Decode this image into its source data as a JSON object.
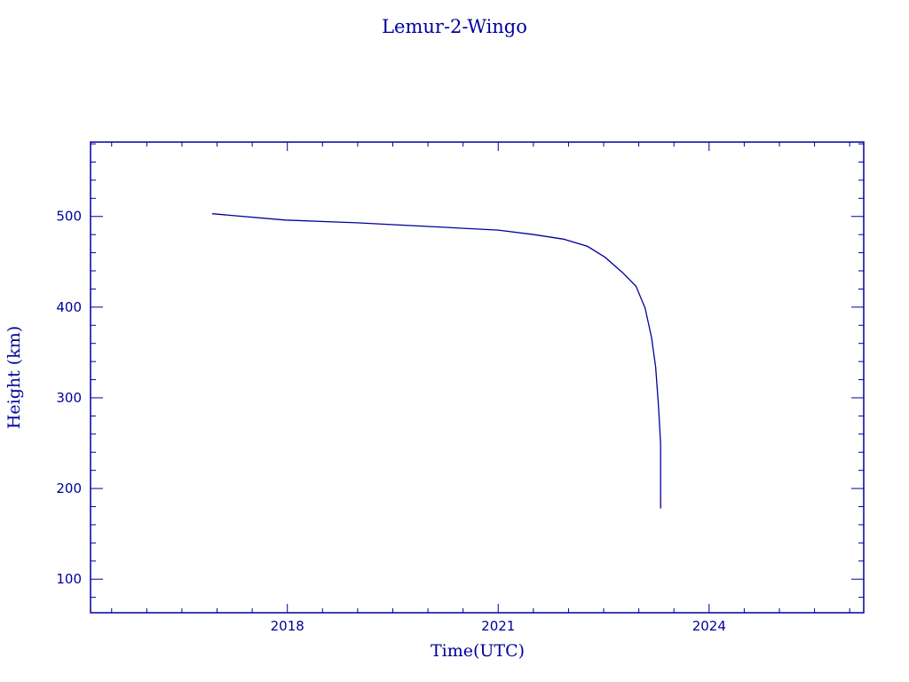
{
  "chart_data": {
    "type": "line",
    "title": "Lemur-2-Wingo",
    "xlabel": "Time(UTC)",
    "ylabel": "Height (km)",
    "xlim": [
      2015.2,
      2026.2
    ],
    "ylim": [
      63,
      582
    ],
    "xticks": [
      2018,
      2021,
      2024
    ],
    "xtick_labels": [
      "2018",
      "2021",
      "2024"
    ],
    "x_minor_step": 0.5,
    "yticks": [
      100,
      200,
      300,
      400,
      500
    ],
    "ytick_labels": [
      "100",
      "200",
      "300",
      "400",
      "500"
    ],
    "y_minor_step": 20,
    "grid": false,
    "color": "#00009a",
    "series": [
      {
        "x": [
          2016.93,
          2017.97,
          2018.99,
          2020.0,
          2021.0,
          2021.51,
          2021.93,
          2022.27,
          2022.52,
          2022.77,
          2022.96,
          2023.09,
          2023.18,
          2023.24,
          2023.28,
          2023.31,
          2023.31
        ],
        "y": [
          503,
          496,
          493,
          489,
          485,
          480,
          475,
          467,
          455,
          438,
          423,
          399,
          367,
          334,
          291,
          249,
          178
        ]
      }
    ]
  }
}
